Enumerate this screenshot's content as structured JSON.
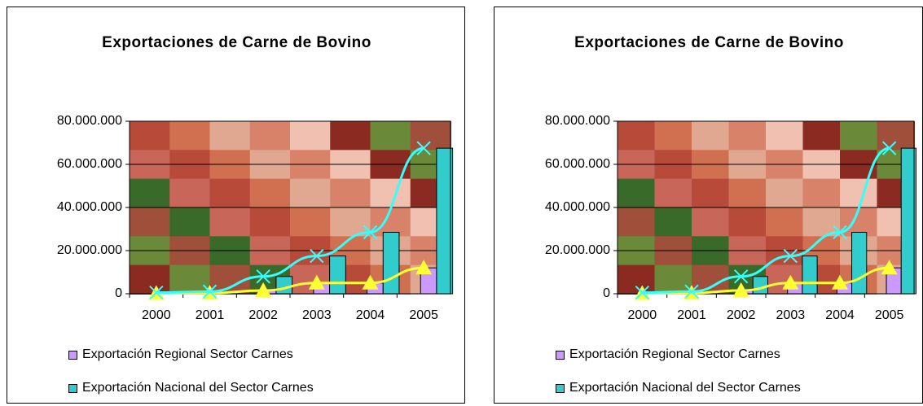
{
  "chart_data": [
    {
      "type": "bar",
      "title": "Exportaciones de Carne de Bovino",
      "categories": [
        "2000",
        "2001",
        "2002",
        "2003",
        "2004",
        "2005"
      ],
      "series": [
        {
          "name": "Exportación Regional Sector Carnes",
          "color": "#cc99ff",
          "line_color": "#ffff33",
          "marker": "triangle",
          "values": [
            200000,
            300000,
            1500000,
            5000000,
            5000000,
            12000000
          ]
        },
        {
          "name": "Exportación Nacional del Sector Carnes",
          "color": "#33cccc",
          "line_color": "#33ffff",
          "marker": "x",
          "values": [
            500000,
            1000000,
            8000000,
            17500000,
            28500000,
            67500000
          ]
        }
      ],
      "ylim": [
        0,
        80000000
      ],
      "yticks": [
        0,
        {
          "value": 20000000,
          "label": "20.000.000"
        },
        {
          "value": 40000000,
          "label": "40.000.000"
        },
        {
          "value": 60000000,
          "label": "60.000.000"
        },
        {
          "value": 80000000,
          "label": "80.000.000"
        }
      ],
      "grid": true
    },
    {
      "type": "bar",
      "title": "Exportaciones de Carne de Bovino",
      "categories": [
        "2000",
        "2001",
        "2002",
        "2003",
        "2004",
        "2005"
      ],
      "series": [
        {
          "name": "Exportación Regional Sector Carnes",
          "color": "#cc99ff",
          "line_color": "#ffff33",
          "marker": "triangle",
          "values": [
            200000,
            300000,
            1500000,
            5000000,
            5000000,
            12000000
          ]
        },
        {
          "name": "Exportación Nacional del Sector Carnes",
          "color": "#33cccc",
          "line_color": "#33ffff",
          "marker": "x",
          "values": [
            500000,
            1000000,
            8000000,
            17500000,
            28500000,
            67500000
          ]
        }
      ],
      "ylim": [
        0,
        80000000
      ],
      "yticks": [
        0,
        {
          "value": 20000000,
          "label": "20.000.000"
        },
        {
          "value": 40000000,
          "label": "40.000.000"
        },
        {
          "value": 60000000,
          "label": "60.000.000"
        },
        {
          "value": 80000000,
          "label": "80.000.000"
        }
      ],
      "grid": true
    }
  ]
}
